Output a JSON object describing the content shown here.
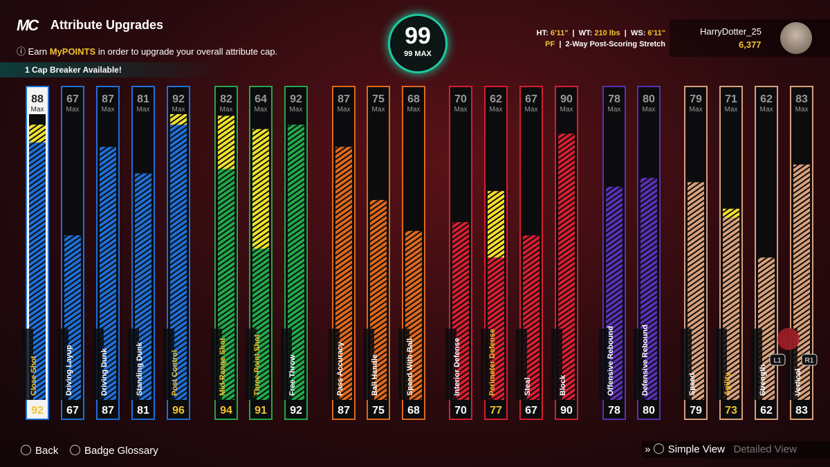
{
  "header": {
    "logo": "MC",
    "title": "Attribute Upgrades",
    "info_prefix": "Earn",
    "info_highlight": "MyPOINTS",
    "info_suffix": "in order to upgrade your overall attribute cap.",
    "cap_breaker": "1 Cap Breaker Available!"
  },
  "overall": {
    "value": 99,
    "label": "99 MAX"
  },
  "player": {
    "ht_label": "HT:",
    "ht": "6'11\"",
    "wt_label": "WT:",
    "wt": "210 lbs",
    "ws_label": "WS:",
    "ws": "6'11\"",
    "position": "PF",
    "build": "2-Way Post-Scoring Stretch",
    "gamertag": "HarryDotter_25",
    "vc": "6,377"
  },
  "max_label": "Max",
  "attributes": [
    {
      "name": "Close Shot",
      "max": 88,
      "value": 92,
      "color": "#1f6fd6",
      "highlight": true,
      "selected": true
    },
    {
      "name": "Driving Layup",
      "max": 67,
      "value": 67,
      "color": "#1f6fd6",
      "highlight": false
    },
    {
      "name": "Driving Dunk",
      "max": 87,
      "value": 87,
      "color": "#1f6fd6",
      "highlight": false
    },
    {
      "name": "Standing Dunk",
      "max": 81,
      "value": 81,
      "color": "#1f6fd6",
      "highlight": false
    },
    {
      "name": "Post Control",
      "max": 92,
      "value": 96,
      "color": "#1f6fd6",
      "highlight": true
    },
    {
      "name": "Mid-Range Shot",
      "max": 82,
      "value": 94,
      "color": "#22a84a",
      "highlight": true
    },
    {
      "name": "Three-Point Shot",
      "max": 64,
      "value": 91,
      "color": "#22a84a",
      "highlight": true
    },
    {
      "name": "Free Throw",
      "max": 92,
      "value": 92,
      "color": "#22a84a",
      "highlight": false
    },
    {
      "name": "Pass Accuracy",
      "max": 87,
      "value": 87,
      "color": "#e0681c",
      "highlight": false
    },
    {
      "name": "Ball Handle",
      "max": 75,
      "value": 75,
      "color": "#e0681c",
      "highlight": false
    },
    {
      "name": "Speed With Ball",
      "max": 68,
      "value": 68,
      "color": "#e0681c",
      "highlight": false
    },
    {
      "name": "Interior Defense",
      "max": 70,
      "value": 70,
      "color": "#d61e30",
      "highlight": false
    },
    {
      "name": "Perimeter Defense",
      "max": 62,
      "value": 77,
      "color": "#d61e30",
      "highlight": true
    },
    {
      "name": "Steal",
      "max": 67,
      "value": 67,
      "color": "#d61e30",
      "highlight": false
    },
    {
      "name": "Block",
      "max": 90,
      "value": 90,
      "color": "#d61e30",
      "highlight": false
    },
    {
      "name": "Offensive Rebound",
      "max": 78,
      "value": 78,
      "color": "#5b30b4",
      "highlight": false
    },
    {
      "name": "Defensive Rebound",
      "max": 80,
      "value": 80,
      "color": "#5b30b4",
      "highlight": false
    },
    {
      "name": "Speed",
      "max": 79,
      "value": 79,
      "color": "#d9a07a",
      "highlight": false
    },
    {
      "name": "Agility",
      "max": 71,
      "value": 73,
      "color": "#d9a07a",
      "highlight": true
    },
    {
      "name": "Strength",
      "max": 62,
      "value": 62,
      "color": "#d9a07a",
      "highlight": false
    },
    {
      "name": "Vertical",
      "max": 83,
      "value": 83,
      "color": "#d9a07a",
      "highlight": false
    }
  ],
  "controls": {
    "l1": "L1",
    "r1": "R1"
  },
  "footer": {
    "back": "Back",
    "glossary": "Badge Glossary",
    "simple_view": "Simple View",
    "detailed_view": "Detailed View"
  }
}
